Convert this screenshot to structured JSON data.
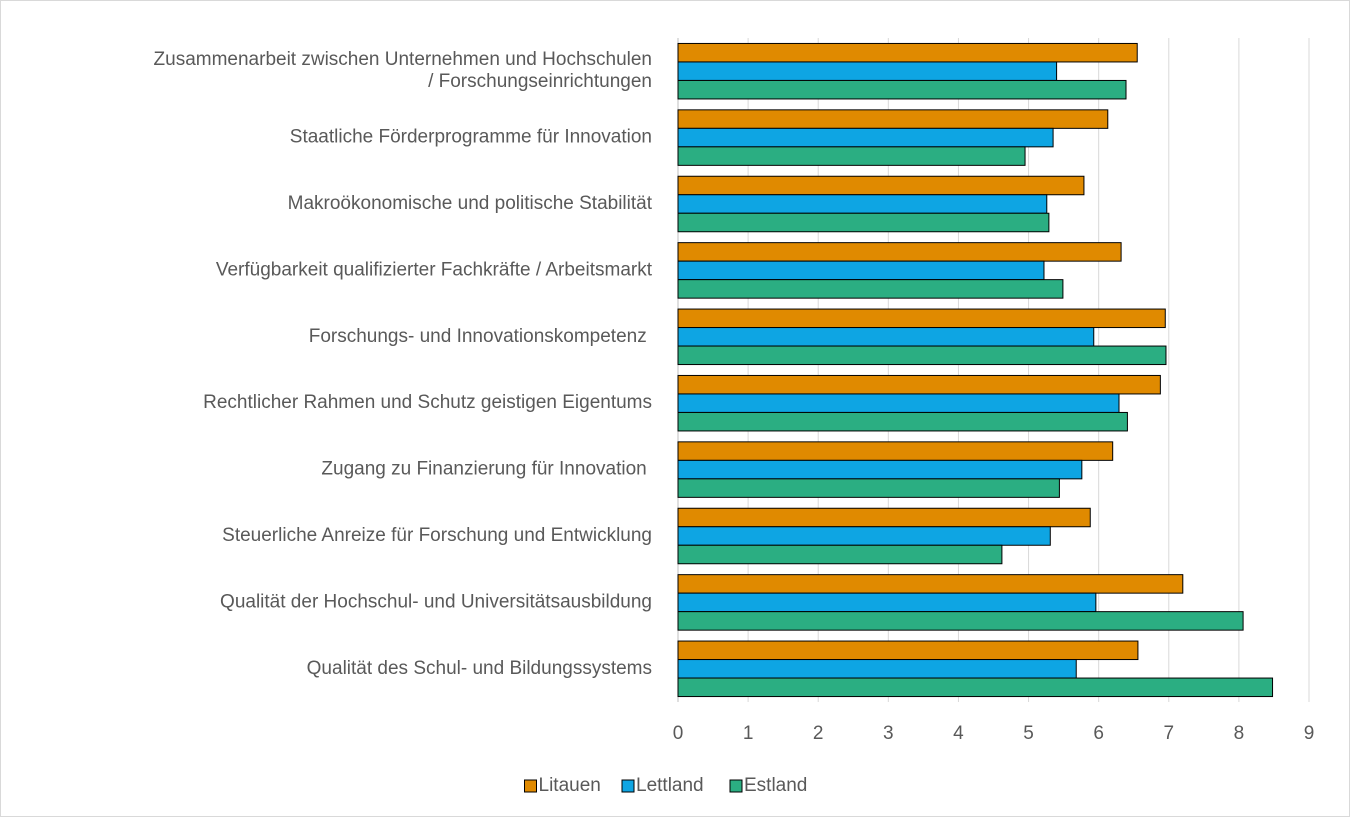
{
  "chart_data": {
    "type": "bar",
    "orientation": "horizontal",
    "categories": [
      "Zusammenarbeit zwischen Unternehmen und Hochschulen\n/ Forschungseinrichtungen",
      "Staatliche Förderprogramme für Innovation",
      "Makroökonomische und politische Stabilität",
      "Verfügbarkeit qualifizierter Fachkräfte / Arbeitsmarkt",
      "Forschungs- und Innovationskompetenz ",
      "Rechtlicher Rahmen und Schutz geistigen Eigentums",
      "Zugang zu Finanzierung für Innovation ",
      "Steuerliche Anreize für Forschung und Entwicklung",
      "Qualität der Hochschul- und Universitätsausbildung",
      "Qualität des Schul- und Bildungssystems"
    ],
    "series": [
      {
        "name": "Litauen",
        "color": "#e08a00",
        "values": [
          6.55,
          6.13,
          5.79,
          6.32,
          6.95,
          6.88,
          6.2,
          5.88,
          7.2,
          6.56
        ]
      },
      {
        "name": "Lettland",
        "color": "#0ea5e3",
        "values": [
          5.4,
          5.35,
          5.26,
          5.22,
          5.93,
          6.29,
          5.76,
          5.31,
          5.96,
          5.68
        ]
      },
      {
        "name": "Estland",
        "color": "#2bae82",
        "values": [
          6.39,
          4.95,
          5.29,
          5.49,
          6.96,
          6.41,
          5.44,
          4.62,
          8.06,
          8.48
        ]
      }
    ],
    "xlim": [
      0,
      9
    ],
    "xticks": [
      0,
      1,
      2,
      3,
      4,
      5,
      6,
      7,
      8,
      9
    ],
    "grid": true,
    "legend": "bottom"
  }
}
